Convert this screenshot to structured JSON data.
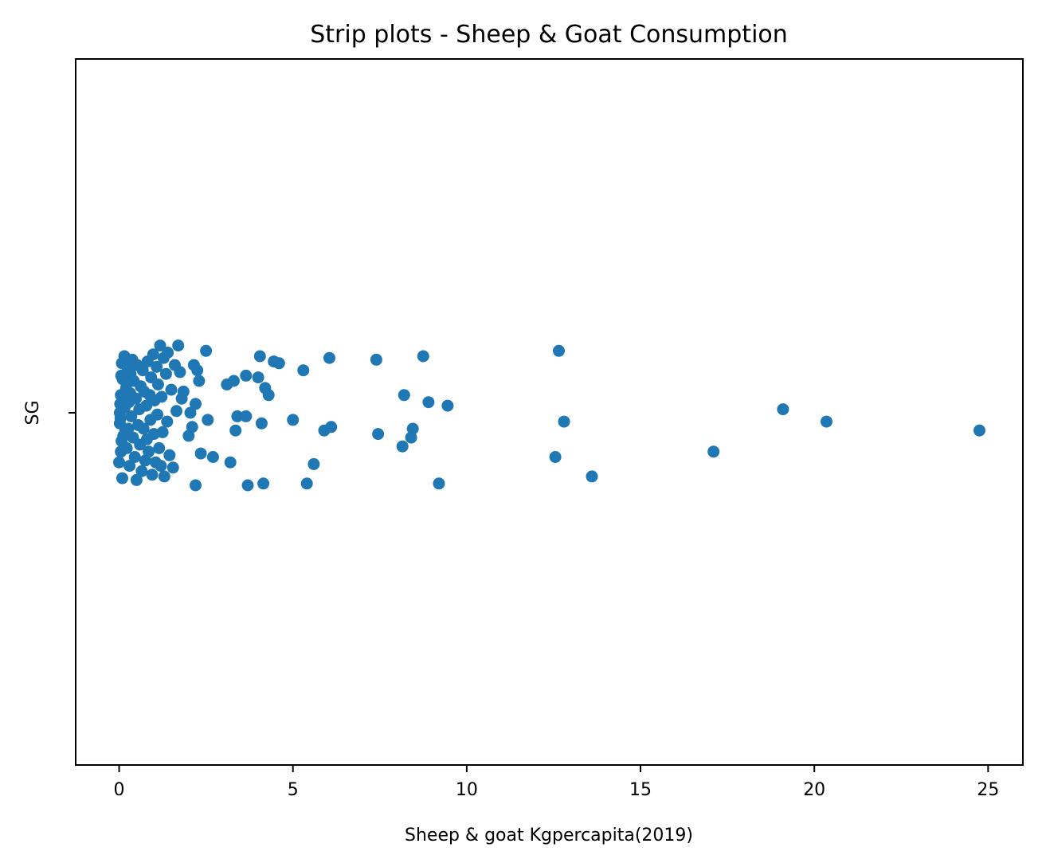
{
  "chart_data": {
    "type": "scatter",
    "subtype": "strip",
    "title": "Strip plots - Sheep & Goat Consumption",
    "xlabel": "Sheep & goat Kgpercapita(2019)",
    "ylabel": "",
    "category": "SG",
    "xlim": [
      -1.25,
      26.0
    ],
    "x_ticks": [
      0,
      5,
      10,
      15,
      20,
      25
    ],
    "x_tick_labels": [
      "0",
      "5",
      "10",
      "15",
      "20",
      "25"
    ],
    "y_tick_labels": [
      "SG"
    ],
    "grid": false,
    "marker_color": "#1f77b4",
    "points": [
      [
        0.05,
        0.1
      ],
      [
        0.05,
        -0.22
      ],
      [
        0.1,
        0.19
      ],
      [
        0.02,
        -0.06
      ],
      [
        0.08,
        0.28
      ],
      [
        0.0,
        -0.28
      ],
      [
        0.03,
        0.05
      ],
      [
        0.12,
        -0.13
      ],
      [
        0.06,
        0.21
      ],
      [
        0.04,
        -0.03
      ],
      [
        0.15,
        0.32
      ],
      [
        0.09,
        -0.37
      ],
      [
        0.2,
        0.14
      ],
      [
        0.18,
        -0.1
      ],
      [
        0.25,
        0.25
      ],
      [
        0.22,
        -0.2
      ],
      [
        0.28,
        0.06
      ],
      [
        0.3,
        -0.3
      ],
      [
        0.33,
        0.22
      ],
      [
        0.35,
        -0.02
      ],
      [
        0.38,
        0.3
      ],
      [
        0.4,
        -0.14
      ],
      [
        0.42,
        0.18
      ],
      [
        0.45,
        -0.25
      ],
      [
        0.48,
        0.08
      ],
      [
        0.5,
        -0.38
      ],
      [
        0.52,
        0.27
      ],
      [
        0.55,
        -0.07
      ],
      [
        0.58,
        0.02
      ],
      [
        0.6,
        -0.18
      ],
      [
        0.62,
        0.15
      ],
      [
        0.65,
        -0.33
      ],
      [
        0.68,
        0.24
      ],
      [
        0.7,
        -0.09
      ],
      [
        0.72,
        0.12
      ],
      [
        0.75,
        -0.27
      ],
      [
        0.78,
        0.04
      ],
      [
        0.8,
        -0.15
      ],
      [
        0.82,
        0.29
      ],
      [
        0.85,
        -0.22
      ],
      [
        0.88,
        0.1
      ],
      [
        0.9,
        -0.04
      ],
      [
        0.92,
        0.2
      ],
      [
        0.95,
        -0.35
      ],
      [
        0.98,
        0.33
      ],
      [
        1.0,
        -0.12
      ],
      [
        1.02,
        0.07
      ],
      [
        1.05,
        -0.28
      ],
      [
        1.08,
        0.26
      ],
      [
        1.1,
        -0.01
      ],
      [
        1.12,
        0.16
      ],
      [
        1.15,
        -0.2
      ],
      [
        1.18,
        0.38
      ],
      [
        1.2,
        -0.3
      ],
      [
        1.22,
        0.09
      ],
      [
        1.25,
        -0.11
      ],
      [
        1.28,
        0.31
      ],
      [
        1.3,
        -0.36
      ],
      [
        1.35,
        0.22
      ],
      [
        1.38,
        -0.05
      ],
      [
        1.4,
        0.34
      ],
      [
        1.45,
        -0.24
      ],
      [
        1.5,
        0.13
      ],
      [
        1.55,
        -0.31
      ],
      [
        1.6,
        0.27
      ],
      [
        1.65,
        0.01
      ],
      [
        1.7,
        0.38
      ],
      [
        1.75,
        0.23
      ],
      [
        1.8,
        0.08
      ],
      [
        1.85,
        0.12
      ],
      [
        2.0,
        -0.13
      ],
      [
        2.05,
        0.0
      ],
      [
        2.1,
        -0.08
      ],
      [
        2.15,
        0.27
      ],
      [
        2.2,
        0.05
      ],
      [
        2.2,
        -0.41
      ],
      [
        2.25,
        0.24
      ],
      [
        2.3,
        0.18
      ],
      [
        2.35,
        -0.23
      ],
      [
        2.5,
        0.35
      ],
      [
        2.55,
        -0.04
      ],
      [
        2.7,
        -0.25
      ],
      [
        3.1,
        0.16
      ],
      [
        3.2,
        -0.28
      ],
      [
        3.3,
        0.18
      ],
      [
        3.35,
        -0.1
      ],
      [
        3.4,
        -0.02
      ],
      [
        3.65,
        -0.02
      ],
      [
        3.65,
        0.21
      ],
      [
        3.7,
        -0.41
      ],
      [
        4.0,
        0.2
      ],
      [
        4.05,
        0.32
      ],
      [
        4.1,
        -0.06
      ],
      [
        4.15,
        -0.4
      ],
      [
        4.2,
        0.14
      ],
      [
        4.3,
        0.1
      ],
      [
        4.45,
        0.29
      ],
      [
        4.6,
        0.28
      ],
      [
        5.0,
        -0.04
      ],
      [
        5.3,
        0.24
      ],
      [
        5.4,
        -0.4
      ],
      [
        5.6,
        -0.29
      ],
      [
        5.9,
        -0.1
      ],
      [
        6.05,
        0.31
      ],
      [
        6.1,
        -0.08
      ],
      [
        7.4,
        0.3
      ],
      [
        7.45,
        -0.12
      ],
      [
        8.15,
        -0.19
      ],
      [
        8.2,
        0.1
      ],
      [
        8.4,
        -0.14
      ],
      [
        8.45,
        -0.09
      ],
      [
        8.75,
        0.32
      ],
      [
        8.9,
        0.06
      ],
      [
        9.2,
        -0.4
      ],
      [
        9.45,
        0.04
      ],
      [
        12.55,
        -0.25
      ],
      [
        12.65,
        0.35
      ],
      [
        12.8,
        -0.05
      ],
      [
        13.6,
        -0.36
      ],
      [
        17.1,
        -0.22
      ],
      [
        19.1,
        0.02
      ],
      [
        20.35,
        -0.05
      ],
      [
        24.75,
        -0.1
      ],
      [
        0.02,
        0.0
      ],
      [
        0.07,
        -0.16
      ],
      [
        0.16,
        0.03
      ],
      [
        0.26,
        -0.09
      ],
      [
        0.32,
        0.11
      ]
    ]
  }
}
